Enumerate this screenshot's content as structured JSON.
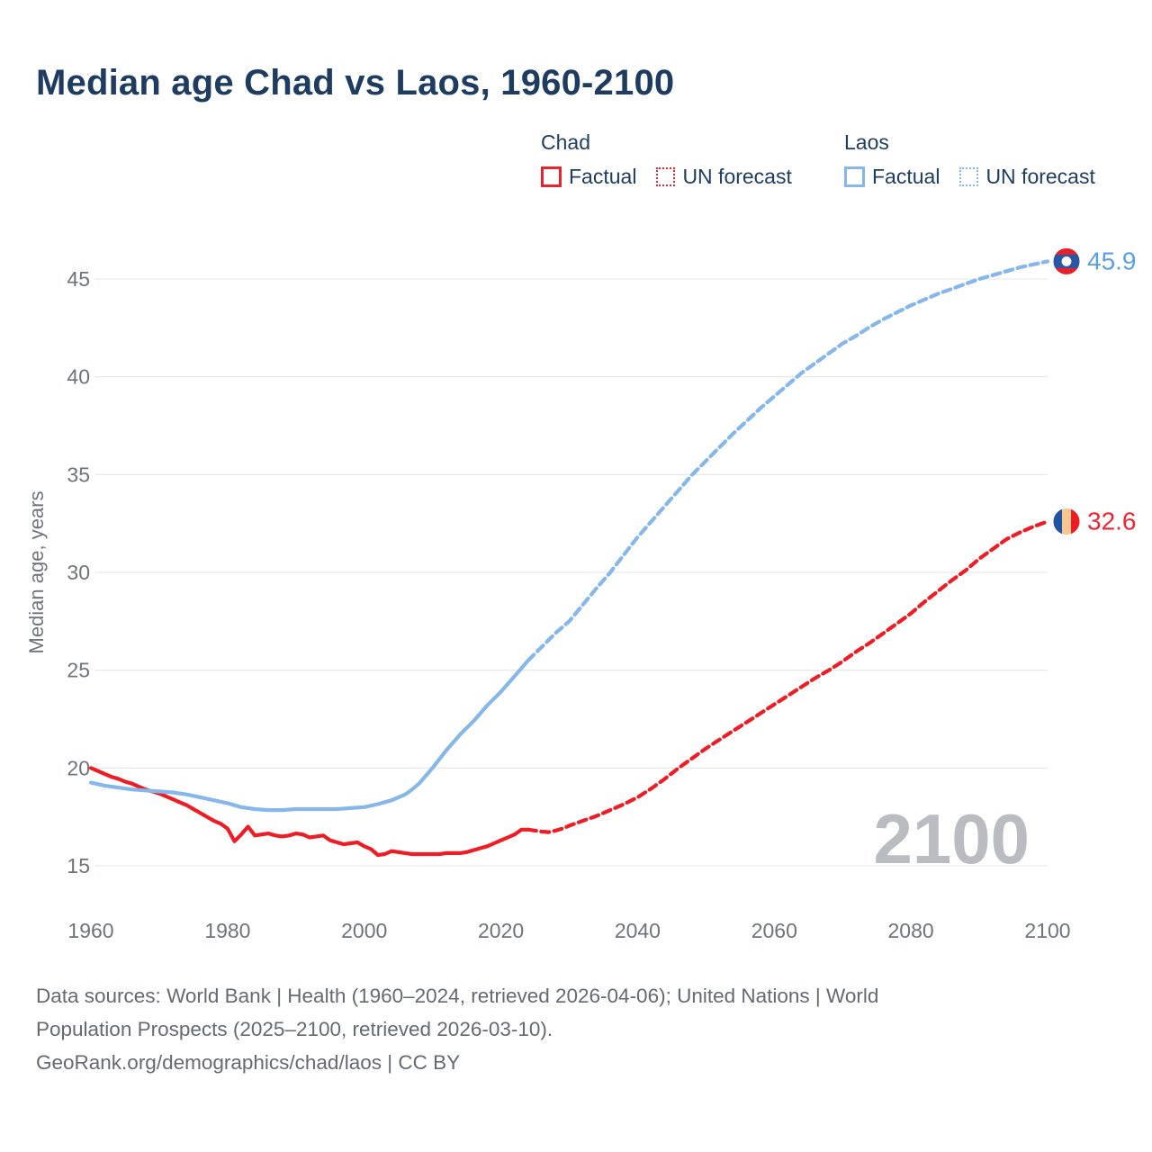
{
  "title": "Median age Chad vs Laos, 1960-2100",
  "legend": {
    "groups": [
      {
        "name": "Chad",
        "factual_label": "Factual",
        "forecast_label": "UN forecast",
        "color": "#e8242c"
      },
      {
        "name": "Laos",
        "factual_label": "Factual",
        "forecast_label": "UN forecast",
        "color": "#85b7ea"
      }
    ]
  },
  "watermark": "2100",
  "footer": {
    "line1": "Data sources: World Bank | Health (1960–2024, retrieved 2026-04-06); United Nations | World",
    "line2": "Population Prospects (2025–2100, retrieved 2026-03-10).",
    "line3": "GeoRank.org/demographics/chad/laos | CC BY"
  },
  "chart_data": {
    "type": "line",
    "title": "Median age Chad vs Laos, 1960-2100",
    "xlabel": "",
    "ylabel": "Median age, years",
    "xlim": [
      1960,
      2100
    ],
    "ylim": [
      15,
      47
    ],
    "x_ticks": [
      1960,
      1980,
      2000,
      2020,
      2040,
      2060,
      2080,
      2100
    ],
    "y_ticks": [
      15,
      20,
      25,
      30,
      35,
      40,
      45
    ],
    "grid": "horizontal",
    "legend_position": "top-right",
    "colors": {
      "chad_line": "#ee1c25",
      "laos_line": "#85b7ea",
      "chad_value_label": "#ee2530",
      "laos_value_label": "#5b9fe3",
      "grid_line": "#e9eaec",
      "tick_label": "#6e747b",
      "watermark": "#b9bdc1",
      "title_text": "#1d3c5f"
    },
    "series": [
      {
        "name": "Chad Factual",
        "country": "Chad",
        "kind": "factual",
        "color": "#ee1c25",
        "line": "solid",
        "points": [
          [
            1960,
            20.0
          ],
          [
            1961,
            19.85
          ],
          [
            1962,
            19.7
          ],
          [
            1963,
            19.55
          ],
          [
            1964,
            19.45
          ],
          [
            1965,
            19.3
          ],
          [
            1966,
            19.2
          ],
          [
            1967,
            19.05
          ],
          [
            1968,
            18.9
          ],
          [
            1969,
            18.8
          ],
          [
            1970,
            18.7
          ],
          [
            1971,
            18.55
          ],
          [
            1972,
            18.4
          ],
          [
            1973,
            18.25
          ],
          [
            1974,
            18.1
          ],
          [
            1975,
            17.9
          ],
          [
            1976,
            17.7
          ],
          [
            1977,
            17.5
          ],
          [
            1978,
            17.3
          ],
          [
            1979,
            17.15
          ],
          [
            1980,
            16.9
          ],
          [
            1981,
            16.25
          ],
          [
            1982,
            16.6
          ],
          [
            1983,
            17.0
          ],
          [
            1984,
            16.55
          ],
          [
            1985,
            16.6
          ],
          [
            1986,
            16.65
          ],
          [
            1987,
            16.55
          ],
          [
            1988,
            16.5
          ],
          [
            1989,
            16.55
          ],
          [
            1990,
            16.65
          ],
          [
            1991,
            16.6
          ],
          [
            1992,
            16.45
          ],
          [
            1993,
            16.5
          ],
          [
            1994,
            16.55
          ],
          [
            1995,
            16.3
          ],
          [
            1996,
            16.2
          ],
          [
            1997,
            16.1
          ],
          [
            1998,
            16.15
          ],
          [
            1999,
            16.2
          ],
          [
            2000,
            16.0
          ],
          [
            2001,
            15.85
          ],
          [
            2002,
            15.55
          ],
          [
            2003,
            15.6
          ],
          [
            2004,
            15.75
          ],
          [
            2005,
            15.7
          ],
          [
            2006,
            15.65
          ],
          [
            2007,
            15.6
          ],
          [
            2008,
            15.6
          ],
          [
            2009,
            15.6
          ],
          [
            2010,
            15.6
          ],
          [
            2011,
            15.6
          ],
          [
            2012,
            15.65
          ],
          [
            2013,
            15.65
          ],
          [
            2014,
            15.65
          ],
          [
            2015,
            15.7
          ],
          [
            2016,
            15.8
          ],
          [
            2017,
            15.9
          ],
          [
            2018,
            16.0
          ],
          [
            2019,
            16.15
          ],
          [
            2020,
            16.3
          ],
          [
            2021,
            16.45
          ],
          [
            2022,
            16.6
          ],
          [
            2023,
            16.85
          ],
          [
            2024,
            16.85
          ]
        ]
      },
      {
        "name": "Chad UN forecast",
        "country": "Chad",
        "kind": "forecast",
        "color": "#ee1c25",
        "line": "dashed",
        "points": [
          [
            2024,
            16.85
          ],
          [
            2025,
            16.8
          ],
          [
            2026,
            16.75
          ],
          [
            2027,
            16.72
          ],
          [
            2028,
            16.8
          ],
          [
            2029,
            16.9
          ],
          [
            2030,
            17.05
          ],
          [
            2032,
            17.3
          ],
          [
            2034,
            17.55
          ],
          [
            2036,
            17.85
          ],
          [
            2038,
            18.15
          ],
          [
            2040,
            18.5
          ],
          [
            2042,
            18.95
          ],
          [
            2044,
            19.45
          ],
          [
            2046,
            20.0
          ],
          [
            2048,
            20.5
          ],
          [
            2050,
            21.0
          ],
          [
            2052,
            21.45
          ],
          [
            2054,
            21.9
          ],
          [
            2056,
            22.35
          ],
          [
            2058,
            22.8
          ],
          [
            2060,
            23.25
          ],
          [
            2062,
            23.7
          ],
          [
            2064,
            24.15
          ],
          [
            2066,
            24.6
          ],
          [
            2068,
            25.0
          ],
          [
            2070,
            25.45
          ],
          [
            2072,
            25.95
          ],
          [
            2074,
            26.4
          ],
          [
            2076,
            26.9
          ],
          [
            2078,
            27.4
          ],
          [
            2080,
            27.9
          ],
          [
            2082,
            28.5
          ],
          [
            2084,
            29.05
          ],
          [
            2086,
            29.6
          ],
          [
            2088,
            30.1
          ],
          [
            2090,
            30.7
          ],
          [
            2092,
            31.2
          ],
          [
            2094,
            31.7
          ],
          [
            2096,
            32.05
          ],
          [
            2098,
            32.35
          ],
          [
            2100,
            32.6
          ]
        ]
      },
      {
        "name": "Laos Factual",
        "country": "Laos",
        "kind": "factual",
        "color": "#85b7ea",
        "line": "solid",
        "points": [
          [
            1960,
            19.25
          ],
          [
            1962,
            19.1
          ],
          [
            1964,
            19.0
          ],
          [
            1966,
            18.9
          ],
          [
            1968,
            18.85
          ],
          [
            1970,
            18.8
          ],
          [
            1972,
            18.75
          ],
          [
            1974,
            18.65
          ],
          [
            1976,
            18.5
          ],
          [
            1978,
            18.35
          ],
          [
            1980,
            18.2
          ],
          [
            1982,
            18.0
          ],
          [
            1984,
            17.9
          ],
          [
            1986,
            17.85
          ],
          [
            1988,
            17.85
          ],
          [
            1990,
            17.9
          ],
          [
            1992,
            17.9
          ],
          [
            1994,
            17.9
          ],
          [
            1996,
            17.9
          ],
          [
            1998,
            17.95
          ],
          [
            2000,
            18.0
          ],
          [
            2002,
            18.15
          ],
          [
            2004,
            18.35
          ],
          [
            2005,
            18.5
          ],
          [
            2006,
            18.65
          ],
          [
            2007,
            18.9
          ],
          [
            2008,
            19.2
          ],
          [
            2009,
            19.6
          ],
          [
            2010,
            20.0
          ],
          [
            2011,
            20.45
          ],
          [
            2012,
            20.9
          ],
          [
            2013,
            21.3
          ],
          [
            2014,
            21.7
          ],
          [
            2015,
            22.05
          ],
          [
            2016,
            22.4
          ],
          [
            2017,
            22.8
          ],
          [
            2018,
            23.2
          ],
          [
            2019,
            23.55
          ],
          [
            2020,
            23.9
          ],
          [
            2021,
            24.3
          ],
          [
            2022,
            24.7
          ],
          [
            2023,
            25.1
          ],
          [
            2024,
            25.5
          ]
        ]
      },
      {
        "name": "Laos UN forecast",
        "country": "Laos",
        "kind": "forecast",
        "color": "#85b7ea",
        "line": "dashed",
        "points": [
          [
            2024,
            25.5
          ],
          [
            2025,
            25.85
          ],
          [
            2026,
            26.2
          ],
          [
            2028,
            26.9
          ],
          [
            2030,
            27.5
          ],
          [
            2032,
            28.35
          ],
          [
            2034,
            29.2
          ],
          [
            2036,
            30.0
          ],
          [
            2038,
            30.9
          ],
          [
            2040,
            31.8
          ],
          [
            2042,
            32.6
          ],
          [
            2044,
            33.4
          ],
          [
            2046,
            34.2
          ],
          [
            2048,
            35.0
          ],
          [
            2050,
            35.7
          ],
          [
            2052,
            36.4
          ],
          [
            2054,
            37.1
          ],
          [
            2056,
            37.75
          ],
          [
            2058,
            38.4
          ],
          [
            2060,
            39.0
          ],
          [
            2062,
            39.6
          ],
          [
            2064,
            40.2
          ],
          [
            2066,
            40.7
          ],
          [
            2068,
            41.2
          ],
          [
            2070,
            41.7
          ],
          [
            2072,
            42.1
          ],
          [
            2074,
            42.55
          ],
          [
            2076,
            42.95
          ],
          [
            2078,
            43.3
          ],
          [
            2080,
            43.65
          ],
          [
            2082,
            43.95
          ],
          [
            2084,
            44.25
          ],
          [
            2086,
            44.5
          ],
          [
            2088,
            44.75
          ],
          [
            2090,
            45.0
          ],
          [
            2092,
            45.2
          ],
          [
            2094,
            45.4
          ],
          [
            2096,
            45.6
          ],
          [
            2098,
            45.75
          ],
          [
            2100,
            45.9
          ]
        ]
      }
    ],
    "end_markers": [
      {
        "series": "Laos UN forecast",
        "flag": "laos",
        "value": 45.9,
        "label": "45.9",
        "label_color": "#5b9fe3",
        "flag_colors": [
          "#e6212b",
          "#2757a5",
          "#ffffff"
        ]
      },
      {
        "series": "Chad UN forecast",
        "flag": "chad",
        "value": 32.6,
        "label": "32.6",
        "label_color": "#ee2530",
        "flag_colors": [
          "#2053a4",
          "#f6c790",
          "#ea1c24"
        ]
      }
    ]
  }
}
